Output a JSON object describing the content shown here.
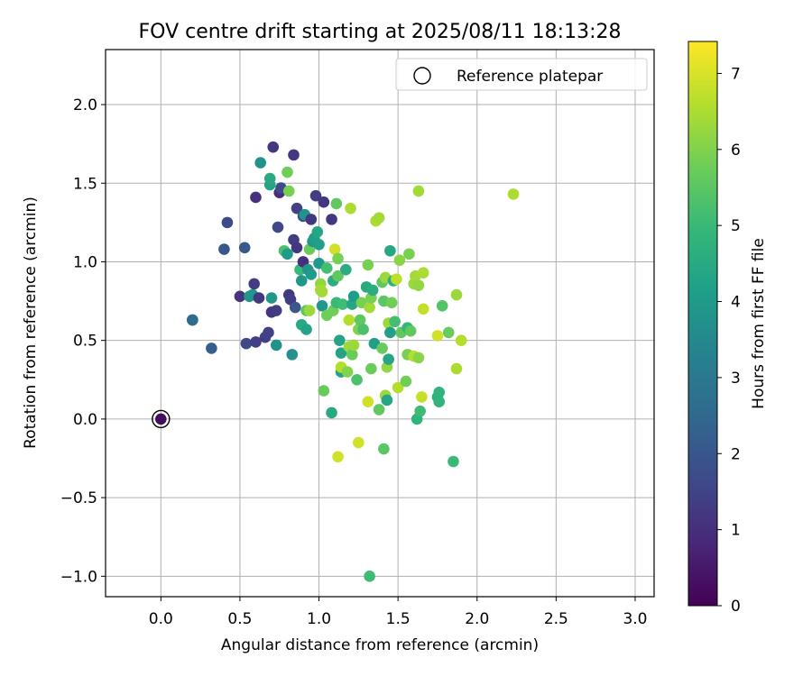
{
  "chart_data": {
    "type": "scatter",
    "title": "FOV centre drift starting at 2025/08/11 18:13:28",
    "xlabel": "Angular distance from reference (arcmin)",
    "ylabel": "Rotation from reference (arcmin)",
    "xlim": [
      -0.35,
      3.12
    ],
    "ylim": [
      -1.13,
      2.35
    ],
    "x_ticks": [
      0.0,
      0.5,
      1.0,
      1.5,
      2.0,
      2.5,
      3.0
    ],
    "x_tick_labels": [
      "0.0",
      "0.5",
      "1.0",
      "1.5",
      "2.0",
      "2.5",
      "3.0"
    ],
    "y_ticks": [
      -1.0,
      -0.5,
      0.0,
      0.5,
      1.0,
      1.5,
      2.0
    ],
    "y_tick_labels": [
      "−1.0",
      "−0.5",
      "0.0",
      "0.5",
      "1.0",
      "1.5",
      "2.0"
    ],
    "grid": true,
    "legend": {
      "placement": "top-right",
      "entries": [
        {
          "label": "Reference platepar",
          "marker": "open-circle"
        }
      ]
    },
    "reference_point": {
      "x": 0.0,
      "y": 0.0
    },
    "colorbar": {
      "label": "Hours from first FF file",
      "range": [
        0,
        7.42
      ],
      "ticks": [
        0,
        1,
        2,
        3,
        4,
        5,
        6,
        7
      ],
      "tick_labels": [
        "0",
        "1",
        "2",
        "3",
        "4",
        "5",
        "6",
        "7"
      ],
      "colormap": "viridis"
    },
    "points": [
      {
        "x": 0.0,
        "y": 0.0,
        "t": 0.3
      },
      {
        "x": 0.2,
        "y": 0.63,
        "t": 2.5
      },
      {
        "x": 0.2,
        "y": 0.63,
        "t": 2.6
      },
      {
        "x": 0.32,
        "y": 0.45,
        "t": 2.2
      },
      {
        "x": 0.4,
        "y": 1.08,
        "t": 2.0
      },
      {
        "x": 0.42,
        "y": 1.25,
        "t": 1.7
      },
      {
        "x": 0.5,
        "y": 0.78,
        "t": 1.1
      },
      {
        "x": 0.53,
        "y": 1.09,
        "t": 2.0
      },
      {
        "x": 0.54,
        "y": 0.48,
        "t": 1.6
      },
      {
        "x": 0.56,
        "y": 0.78,
        "t": 3.8
      },
      {
        "x": 0.58,
        "y": 0.79,
        "t": 3.9
      },
      {
        "x": 0.59,
        "y": 0.86,
        "t": 1.3
      },
      {
        "x": 0.6,
        "y": 1.41,
        "t": 1.0
      },
      {
        "x": 0.6,
        "y": 0.49,
        "t": 1.4
      },
      {
        "x": 0.62,
        "y": 0.77,
        "t": 1.2
      },
      {
        "x": 0.63,
        "y": 1.63,
        "t": 3.8
      },
      {
        "x": 0.66,
        "y": 0.52,
        "t": 1.4
      },
      {
        "x": 0.68,
        "y": 0.55,
        "t": 1.5
      },
      {
        "x": 0.69,
        "y": 1.49,
        "t": 4.3
      },
      {
        "x": 0.69,
        "y": 1.53,
        "t": 4.5
      },
      {
        "x": 0.7,
        "y": 0.68,
        "t": 1.2
      },
      {
        "x": 0.7,
        "y": 0.77,
        "t": 3.9
      },
      {
        "x": 0.71,
        "y": 1.73,
        "t": 1.2
      },
      {
        "x": 0.73,
        "y": 0.47,
        "t": 3.8
      },
      {
        "x": 0.73,
        "y": 0.69,
        "t": 1.3
      },
      {
        "x": 0.74,
        "y": 1.22,
        "t": 1.6
      },
      {
        "x": 0.75,
        "y": 1.44,
        "t": 1.0
      },
      {
        "x": 0.76,
        "y": 1.47,
        "t": 1.7
      },
      {
        "x": 0.78,
        "y": 1.07,
        "t": 5.3
      },
      {
        "x": 0.8,
        "y": 1.57,
        "t": 5.8
      },
      {
        "x": 0.8,
        "y": 1.05,
        "t": 4.0
      },
      {
        "x": 0.81,
        "y": 1.45,
        "t": 5.9
      },
      {
        "x": 0.81,
        "y": 0.79,
        "t": 1.2
      },
      {
        "x": 0.82,
        "y": 0.76,
        "t": 1.3
      },
      {
        "x": 0.83,
        "y": 0.41,
        "t": 3.7
      },
      {
        "x": 0.84,
        "y": 1.68,
        "t": 1.2
      },
      {
        "x": 0.84,
        "y": 1.14,
        "t": 1.3
      },
      {
        "x": 0.85,
        "y": 0.71,
        "t": 2.0
      },
      {
        "x": 0.86,
        "y": 1.34,
        "t": 1.4
      },
      {
        "x": 0.86,
        "y": 1.09,
        "t": 1.2
      },
      {
        "x": 0.88,
        "y": 0.95,
        "t": 5.0
      },
      {
        "x": 0.89,
        "y": 0.88,
        "t": 3.9
      },
      {
        "x": 0.89,
        "y": 0.6,
        "t": 4.5
      },
      {
        "x": 0.9,
        "y": 1.0,
        "t": 1.0
      },
      {
        "x": 0.9,
        "y": 1.29,
        "t": 1.8
      },
      {
        "x": 0.91,
        "y": 1.3,
        "t": 3.8
      },
      {
        "x": 0.92,
        "y": 0.57,
        "t": 4.3
      },
      {
        "x": 0.92,
        "y": 0.69,
        "t": 5.5
      },
      {
        "x": 0.93,
        "y": 0.95,
        "t": 3.9
      },
      {
        "x": 0.94,
        "y": 0.69,
        "t": 6.3
      },
      {
        "x": 0.94,
        "y": 1.08,
        "t": 5.7
      },
      {
        "x": 0.95,
        "y": 0.92,
        "t": 4.0
      },
      {
        "x": 0.95,
        "y": 1.27,
        "t": 1.2
      },
      {
        "x": 0.96,
        "y": 1.13,
        "t": 3.9
      },
      {
        "x": 0.97,
        "y": 1.15,
        "t": 4.2
      },
      {
        "x": 0.98,
        "y": 1.42,
        "t": 1.3
      },
      {
        "x": 0.99,
        "y": 1.19,
        "t": 4.4
      },
      {
        "x": 1.0,
        "y": 0.99,
        "t": 4.0
      },
      {
        "x": 1.0,
        "y": 1.11,
        "t": 4.2
      },
      {
        "x": 1.01,
        "y": 0.86,
        "t": 6.2
      },
      {
        "x": 1.01,
        "y": 0.82,
        "t": 6.4
      },
      {
        "x": 1.02,
        "y": 0.72,
        "t": 3.9
      },
      {
        "x": 1.02,
        "y": 0.81,
        "t": 6.4
      },
      {
        "x": 1.03,
        "y": 1.38,
        "t": 1.2
      },
      {
        "x": 1.03,
        "y": 0.18,
        "t": 5.7
      },
      {
        "x": 1.05,
        "y": 0.66,
        "t": 5.8
      },
      {
        "x": 1.05,
        "y": 0.96,
        "t": 5.2
      },
      {
        "x": 1.08,
        "y": 1.27,
        "t": 1.2
      },
      {
        "x": 1.08,
        "y": 0.04,
        "t": 4.5
      },
      {
        "x": 1.09,
        "y": 0.88,
        "t": 4.6
      },
      {
        "x": 1.09,
        "y": 0.69,
        "t": 5.8
      },
      {
        "x": 1.1,
        "y": 1.08,
        "t": 6.9
      },
      {
        "x": 1.11,
        "y": 0.74,
        "t": 5.0
      },
      {
        "x": 1.11,
        "y": 1.37,
        "t": 5.6
      },
      {
        "x": 1.12,
        "y": 0.91,
        "t": 5.6
      },
      {
        "x": 1.12,
        "y": -0.24,
        "t": 6.9
      },
      {
        "x": 1.12,
        "y": 1.02,
        "t": 5.9
      },
      {
        "x": 1.13,
        "y": 0.5,
        "t": 4.3
      },
      {
        "x": 1.14,
        "y": 0.3,
        "t": 4.3
      },
      {
        "x": 1.14,
        "y": 0.33,
        "t": 6.6
      },
      {
        "x": 1.14,
        "y": 0.42,
        "t": 4.3
      },
      {
        "x": 1.15,
        "y": 0.73,
        "t": 5.1
      },
      {
        "x": 1.17,
        "y": 0.95,
        "t": 4.6
      },
      {
        "x": 1.18,
        "y": 0.3,
        "t": 6.0
      },
      {
        "x": 1.19,
        "y": 0.63,
        "t": 6.6
      },
      {
        "x": 1.19,
        "y": 0.46,
        "t": 6.3
      },
      {
        "x": 1.2,
        "y": 1.34,
        "t": 6.5
      },
      {
        "x": 1.21,
        "y": 0.73,
        "t": 4.4
      },
      {
        "x": 1.21,
        "y": 0.41,
        "t": 5.7
      },
      {
        "x": 1.22,
        "y": 0.78,
        "t": 4.1
      },
      {
        "x": 1.22,
        "y": 0.47,
        "t": 6.3
      },
      {
        "x": 1.24,
        "y": 0.25,
        "t": 5.3
      },
      {
        "x": 1.25,
        "y": -0.15,
        "t": 6.9
      },
      {
        "x": 1.25,
        "y": 0.57,
        "t": 6.0
      },
      {
        "x": 1.26,
        "y": 0.63,
        "t": 5.6
      },
      {
        "x": 1.27,
        "y": 0.74,
        "t": 5.9
      },
      {
        "x": 1.28,
        "y": 0.57,
        "t": 5.3
      },
      {
        "x": 1.3,
        "y": 0.84,
        "t": 4.5
      },
      {
        "x": 1.31,
        "y": 0.98,
        "t": 5.9
      },
      {
        "x": 1.31,
        "y": 0.11,
        "t": 6.9
      },
      {
        "x": 1.32,
        "y": -1.0,
        "t": 5.1
      },
      {
        "x": 1.32,
        "y": 0.71,
        "t": 6.4
      },
      {
        "x": 1.33,
        "y": 0.77,
        "t": 5.9
      },
      {
        "x": 1.33,
        "y": 0.32,
        "t": 5.7
      },
      {
        "x": 1.34,
        "y": 0.82,
        "t": 4.6
      },
      {
        "x": 1.35,
        "y": 0.48,
        "t": 4.2
      },
      {
        "x": 1.36,
        "y": 1.26,
        "t": 6.5
      },
      {
        "x": 1.38,
        "y": 1.28,
        "t": 6.4
      },
      {
        "x": 1.38,
        "y": 0.06,
        "t": 5.6
      },
      {
        "x": 1.4,
        "y": 0.87,
        "t": 5.6
      },
      {
        "x": 1.4,
        "y": 0.45,
        "t": 5.7
      },
      {
        "x": 1.41,
        "y": 0.75,
        "t": 5.5
      },
      {
        "x": 1.41,
        "y": -0.19,
        "t": 5.5
      },
      {
        "x": 1.42,
        "y": 0.9,
        "t": 6.3
      },
      {
        "x": 1.42,
        "y": 0.15,
        "t": 6.3
      },
      {
        "x": 1.43,
        "y": 0.33,
        "t": 6.2
      },
      {
        "x": 1.43,
        "y": 0.12,
        "t": 4.4
      },
      {
        "x": 1.44,
        "y": 0.61,
        "t": 6.3
      },
      {
        "x": 1.44,
        "y": 0.38,
        "t": 4.4
      },
      {
        "x": 1.45,
        "y": 1.07,
        "t": 4.4
      },
      {
        "x": 1.45,
        "y": 0.55,
        "t": 4.2
      },
      {
        "x": 1.46,
        "y": 0.74,
        "t": 5.8
      },
      {
        "x": 1.47,
        "y": 0.88,
        "t": 4.7
      },
      {
        "x": 1.48,
        "y": 0.62,
        "t": 5.2
      },
      {
        "x": 1.49,
        "y": 0.89,
        "t": 6.7
      },
      {
        "x": 1.5,
        "y": 0.2,
        "t": 6.6
      },
      {
        "x": 1.51,
        "y": 1.01,
        "t": 6.1
      },
      {
        "x": 1.52,
        "y": 0.55,
        "t": 5.6
      },
      {
        "x": 1.55,
        "y": 0.24,
        "t": 5.8
      },
      {
        "x": 1.56,
        "y": 0.58,
        "t": 4.9
      },
      {
        "x": 1.56,
        "y": 0.41,
        "t": 5.9
      },
      {
        "x": 1.57,
        "y": 1.05,
        "t": 5.9
      },
      {
        "x": 1.58,
        "y": 0.56,
        "t": 5.6
      },
      {
        "x": 1.6,
        "y": 0.86,
        "t": 6.3
      },
      {
        "x": 1.6,
        "y": 0.4,
        "t": 6.6
      },
      {
        "x": 1.61,
        "y": 0.91,
        "t": 6.4
      },
      {
        "x": 1.62,
        "y": 0.0,
        "t": 4.8
      },
      {
        "x": 1.63,
        "y": 1.45,
        "t": 6.4
      },
      {
        "x": 1.63,
        "y": 0.85,
        "t": 6.2
      },
      {
        "x": 1.63,
        "y": 0.39,
        "t": 6.1
      },
      {
        "x": 1.64,
        "y": 0.05,
        "t": 5.1
      },
      {
        "x": 1.65,
        "y": 0.14,
        "t": 6.8
      },
      {
        "x": 1.66,
        "y": 0.93,
        "t": 6.5
      },
      {
        "x": 1.66,
        "y": 0.7,
        "t": 6.8
      },
      {
        "x": 1.75,
        "y": 0.14,
        "t": 4.7
      },
      {
        "x": 1.75,
        "y": 0.53,
        "t": 6.9
      },
      {
        "x": 1.76,
        "y": 0.17,
        "t": 4.8
      },
      {
        "x": 1.76,
        "y": 0.11,
        "t": 4.8
      },
      {
        "x": 1.78,
        "y": 0.72,
        "t": 5.4
      },
      {
        "x": 1.82,
        "y": 0.55,
        "t": 5.7
      },
      {
        "x": 1.85,
        "y": -0.27,
        "t": 5.0
      },
      {
        "x": 1.87,
        "y": 0.32,
        "t": 6.5
      },
      {
        "x": 1.87,
        "y": 0.79,
        "t": 6.3
      },
      {
        "x": 1.9,
        "y": 0.5,
        "t": 6.6
      },
      {
        "x": 2.23,
        "y": 1.43,
        "t": 6.5
      }
    ]
  }
}
